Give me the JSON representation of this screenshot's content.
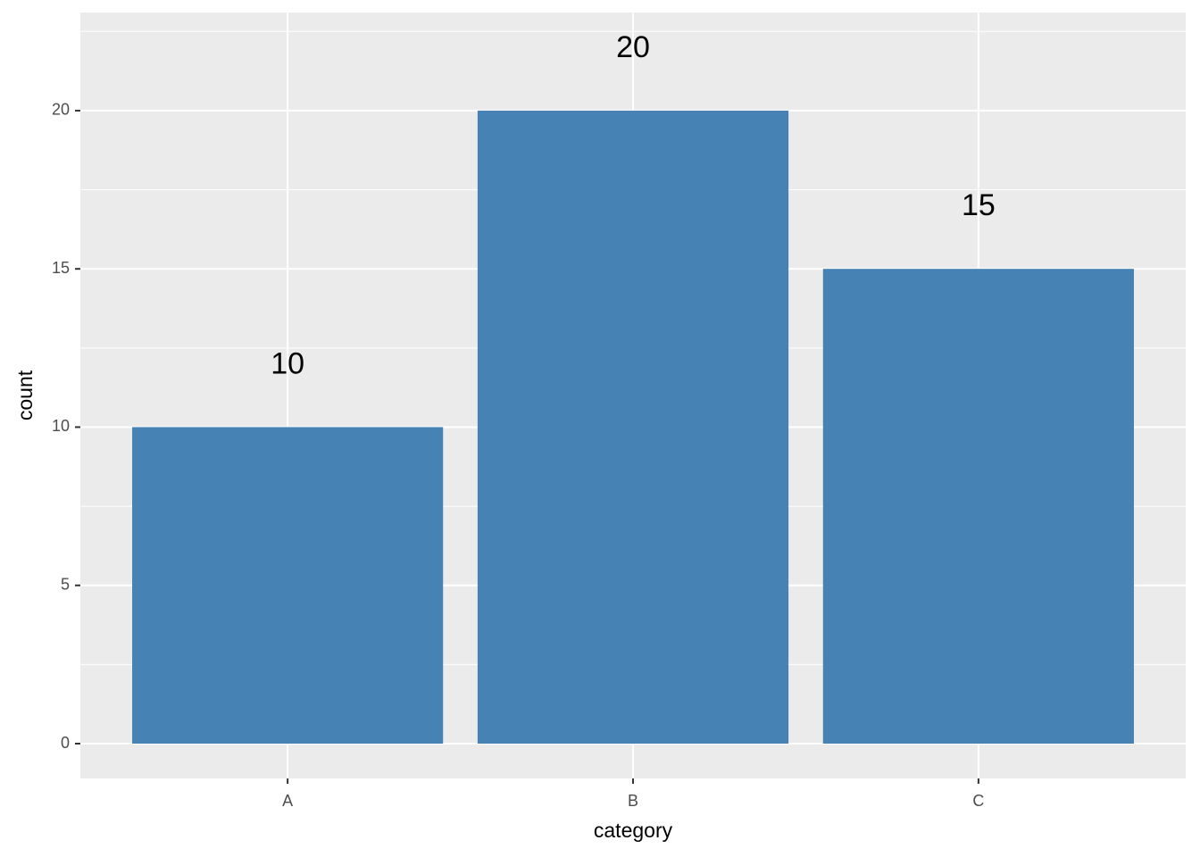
{
  "chart_data": {
    "type": "bar",
    "x_label": "category",
    "y_label": "count",
    "categories": [
      "A",
      "B",
      "C"
    ],
    "values": [
      10,
      20,
      15
    ],
    "color": "#4682b4",
    "ylim": [
      -1.1,
      23.1
    ],
    "yticks": [
      0,
      5,
      10,
      15,
      20
    ],
    "grid": true
  }
}
